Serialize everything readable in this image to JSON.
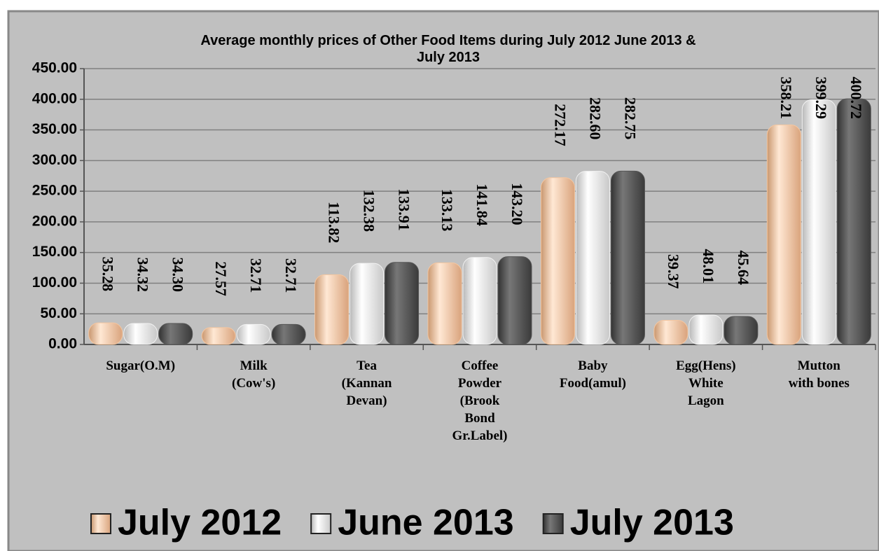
{
  "chart_data": {
    "type": "bar",
    "title": "Average monthly prices of Other Food Items during  July  2012 June 2013 &\nJuly 2013",
    "categories": [
      "Sugar(O.M)",
      "Milk\n(Cow's)",
      "Tea\n(Kannan\nDevan)",
      "Coffee\nPowder\n(Brook\nBond\nGr.Label)",
      "Baby\nFood(amul)",
      "Egg(Hens)\nWhite\nLagon",
      "Mutton\nwith  bones"
    ],
    "series": [
      {
        "name": "July 2012",
        "color": "#f4c6a0",
        "values": [
          35.28,
          27.57,
          113.82,
          133.13,
          272.17,
          39.37,
          358.21
        ],
        "value_labels": [
          "35.28",
          "27.57",
          "113.82",
          "133.13",
          "272.17",
          "39.37",
          "358.21"
        ]
      },
      {
        "name": "June 2013",
        "color": "#f2f2f2",
        "values": [
          34.32,
          32.71,
          132.38,
          141.84,
          282.6,
          48.01,
          399.29
        ],
        "value_labels": [
          "34.32",
          "32.71",
          "132.38",
          "141.84",
          "282.60",
          "48.01",
          "399.29"
        ]
      },
      {
        "name": "July 2013",
        "color": "#555555",
        "values": [
          34.3,
          32.71,
          133.91,
          143.2,
          282.75,
          45.64,
          400.72
        ],
        "value_labels": [
          "34.30",
          "32.71",
          "133.91",
          "143.20",
          "282.75",
          "45.64",
          "400.72"
        ]
      }
    ],
    "ylim": [
      0,
      450
    ],
    "yticks": [
      {
        "value": 0,
        "label": "0.00"
      },
      {
        "value": 50,
        "label": "50.00"
      },
      {
        "value": 100,
        "label": "100.00"
      },
      {
        "value": 150,
        "label": "150.00"
      },
      {
        "value": 200,
        "label": "200.00"
      },
      {
        "value": 250,
        "label": "250.00"
      },
      {
        "value": 300,
        "label": "300.00"
      },
      {
        "value": 350,
        "label": "350.00"
      },
      {
        "value": 400,
        "label": "400.00"
      },
      {
        "value": 450,
        "label": "450.00"
      }
    ],
    "grid": true,
    "legend": "bottom"
  }
}
